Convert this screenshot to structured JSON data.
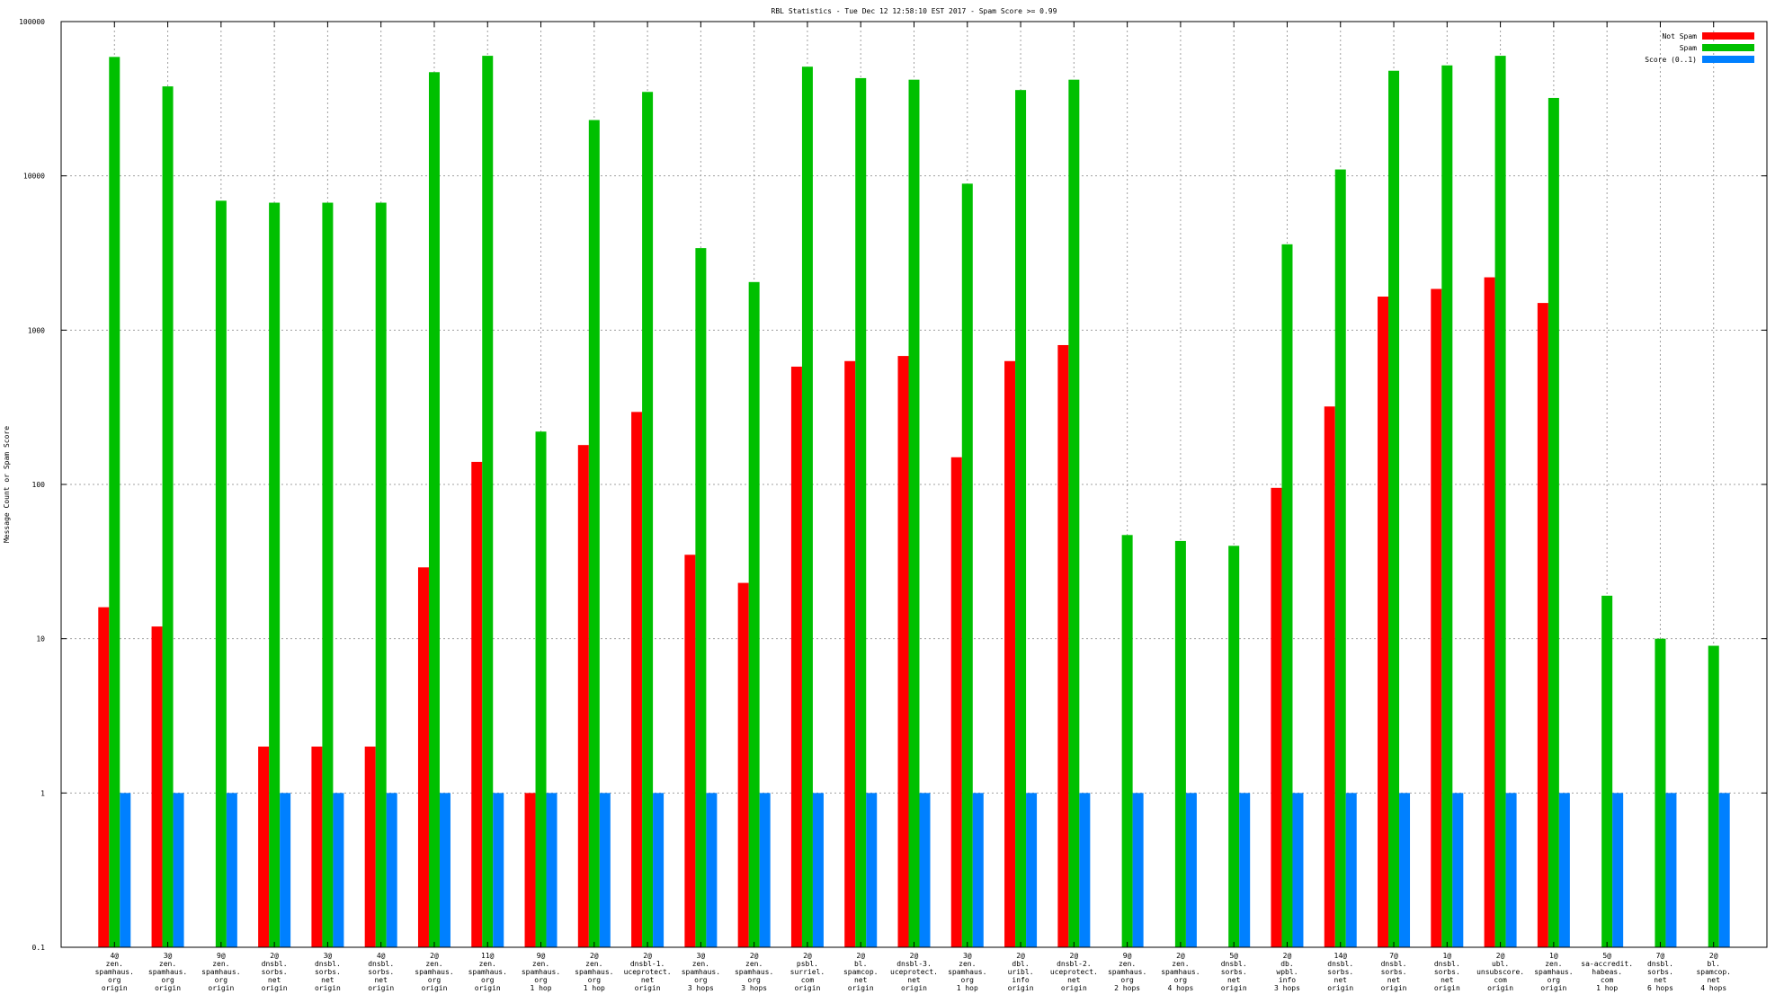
{
  "chart_data": {
    "type": "bar",
    "title": "RBL Statistics - Tue Dec 12 12:58:10 EST 2017 - Spam Score >= 0.99",
    "ylabel": "Message Count or Spam Score",
    "xlabel": "",
    "yscale": "log",
    "ylim": [
      0.1,
      100000
    ],
    "yticks": [
      "0.1",
      "1",
      "10",
      "100",
      "1000",
      "10000",
      "100000"
    ],
    "grid": true,
    "legend_position": "top-right",
    "categories": [
      [
        "4@",
        "zen.",
        "spamhaus.",
        "org",
        "origin"
      ],
      [
        "3@",
        "zen.",
        "spamhaus.",
        "org",
        "origin"
      ],
      [
        "9@",
        "zen.",
        "spamhaus.",
        "org",
        "origin"
      ],
      [
        "2@",
        "dnsbl.",
        "sorbs.",
        "net",
        "origin"
      ],
      [
        "3@",
        "dnsbl.",
        "sorbs.",
        "net",
        "origin"
      ],
      [
        "4@",
        "dnsbl.",
        "sorbs.",
        "net",
        "origin"
      ],
      [
        "2@",
        "zen.",
        "spamhaus.",
        "org",
        "origin"
      ],
      [
        "11@",
        "zen.",
        "spamhaus.",
        "org",
        "origin"
      ],
      [
        "9@",
        "zen.",
        "spamhaus.",
        "org",
        "1 hop"
      ],
      [
        "2@",
        "zen.",
        "spamhaus.",
        "org",
        "1 hop"
      ],
      [
        "2@",
        "dnsbl-1.",
        "uceprotect.",
        "net",
        "origin"
      ],
      [
        "3@",
        "zen.",
        "spamhaus.",
        "org",
        "3 hops"
      ],
      [
        "2@",
        "zen.",
        "spamhaus.",
        "org",
        "3 hops"
      ],
      [
        "2@",
        "psbl.",
        "surriel.",
        "com",
        "origin"
      ],
      [
        "2@",
        "bl.",
        "spamcop.",
        "net",
        "origin"
      ],
      [
        "2@",
        "dnsbl-3.",
        "uceprotect.",
        "net",
        "origin"
      ],
      [
        "3@",
        "zen.",
        "spamhaus.",
        "org",
        "1 hop"
      ],
      [
        "2@",
        "dbl.",
        "uribl.",
        "info",
        "origin"
      ],
      [
        "2@",
        "dnsbl-2.",
        "uceprotect.",
        "net",
        "origin"
      ],
      [
        "9@",
        "zen.",
        "spamhaus.",
        "org",
        "2 hops"
      ],
      [
        "2@",
        "zen.",
        "spamhaus.",
        "org",
        "4 hops"
      ],
      [
        "5@",
        "dnsbl.",
        "sorbs.",
        "net",
        "origin"
      ],
      [
        "2@",
        "db.",
        "wpbl.",
        "info",
        "3 hops"
      ],
      [
        "14@",
        "dnsbl.",
        "sorbs.",
        "net",
        "origin"
      ],
      [
        "7@",
        "dnsbl.",
        "sorbs.",
        "net",
        "origin"
      ],
      [
        "1@",
        "dnsbl.",
        "sorbs.",
        "net",
        "origin"
      ],
      [
        "2@",
        "ubl.",
        "unsubscore.",
        "com",
        "origin"
      ],
      [
        "1@",
        "zen.",
        "spamhaus.",
        "org",
        "origin"
      ],
      [
        "5@",
        "sa-accredit.",
        "habeas.",
        "com",
        "1 hop"
      ],
      [
        "7@",
        "dnsbl.",
        "sorbs.",
        "net",
        "6 hops"
      ],
      [
        "2@",
        "bl.",
        "spamcop.",
        "net",
        "4 hops"
      ]
    ],
    "series": [
      {
        "name": "Not Spam",
        "color": "#ff0000",
        "values": [
          16,
          12,
          null,
          2,
          2,
          2,
          29,
          140,
          1,
          180,
          295,
          35,
          23,
          580,
          630,
          680,
          150,
          630,
          800,
          null,
          null,
          null,
          95,
          320,
          1650,
          1850,
          2200,
          1500,
          null,
          null,
          null
        ]
      },
      {
        "name": "Spam",
        "color": "#00c000",
        "values": [
          59000,
          38000,
          6900,
          6700,
          6700,
          6700,
          47000,
          60000,
          220,
          23000,
          35000,
          3400,
          2050,
          51000,
          43000,
          42000,
          8900,
          36000,
          42000,
          47,
          43,
          40,
          3600,
          11000,
          48000,
          52000,
          60000,
          32000,
          19,
          10,
          9
        ]
      },
      {
        "name": "Score (0..1)",
        "color": "#0080ff",
        "values": [
          1,
          1,
          1,
          1,
          1,
          1,
          1,
          1,
          1,
          1,
          1,
          1,
          1,
          1,
          1,
          1,
          1,
          1,
          1,
          1,
          1,
          1,
          1,
          1,
          1,
          1,
          1,
          1,
          1,
          1,
          1
        ]
      }
    ]
  }
}
